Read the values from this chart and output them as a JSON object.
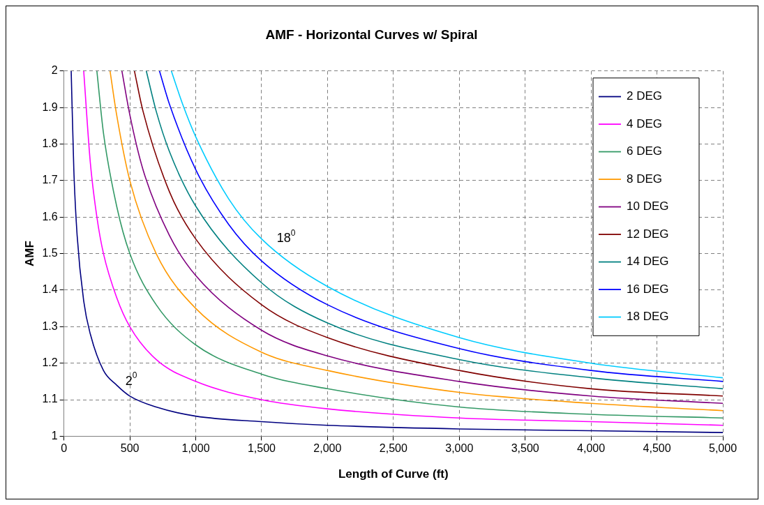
{
  "chart_data": {
    "type": "line",
    "title": "AMF - Horizontal Curves w/ Spiral",
    "xlabel": "Length of Curve (ft)",
    "ylabel": "AMF",
    "xlim": [
      0,
      5000
    ],
    "xticks": [
      0,
      500,
      {
        "value": 1000,
        "label": "1,000"
      },
      {
        "value": 1500,
        "label": "1,500"
      },
      {
        "value": 2000,
        "label": "2,000"
      },
      {
        "value": 2500,
        "label": "2,500"
      },
      {
        "value": 3000,
        "label": "3,000"
      },
      {
        "value": 3500,
        "label": "3,500"
      },
      {
        "value": 4000,
        "label": "4,000"
      },
      {
        "value": 4500,
        "label": "4,500"
      },
      {
        "value": 5000,
        "label": "5,000"
      }
    ],
    "ylim": [
      1,
      2
    ],
    "yticks": [
      1,
      1.1,
      1.2,
      1.3,
      1.4,
      1.5,
      1.6,
      1.7,
      1.8,
      1.9,
      2
    ],
    "grid": true,
    "legend": "top right",
    "marker": "none",
    "line_style": "solid",
    "annotations": [
      {
        "text": "2$^{0}$",
        "x": 450,
        "y": 1.12
      },
      {
        "text": "18$^{0}$",
        "x": 1600,
        "y": 1.51
      }
    ],
    "series": [
      {
        "name": "2 DEG",
        "color": "#000080",
        "x": [
          55,
          75,
          100,
          150,
          200,
          300,
          400,
          500,
          700,
          1000,
          1500,
          2000,
          3000,
          4000,
          5000
        ],
        "values": [
          2.0,
          1.73,
          1.55,
          1.37,
          1.28,
          1.18,
          1.14,
          1.11,
          1.08,
          1.055,
          1.04,
          1.03,
          1.02,
          1.015,
          1.01
        ]
      },
      {
        "name": "4 DEG",
        "color": "#ff00ff",
        "x": [
          150,
          200,
          250,
          300,
          400,
          500,
          700,
          1000,
          1500,
          2000,
          3000,
          4000,
          5000
        ],
        "values": [
          2.0,
          1.75,
          1.6,
          1.5,
          1.38,
          1.3,
          1.21,
          1.15,
          1.1,
          1.075,
          1.05,
          1.04,
          1.03
        ]
      },
      {
        "name": "6 DEG",
        "color": "#339966",
        "x": [
          250,
          300,
          400,
          500,
          700,
          1000,
          1500,
          2000,
          3000,
          4000,
          5000
        ],
        "values": [
          2.0,
          1.83,
          1.63,
          1.5,
          1.36,
          1.25,
          1.17,
          1.13,
          1.08,
          1.06,
          1.05
        ]
      },
      {
        "name": "8 DEG",
        "color": "#ff9900",
        "x": [
          350,
          400,
          500,
          700,
          1000,
          1500,
          2000,
          3000,
          4000,
          5000
        ],
        "values": [
          2.0,
          1.88,
          1.7,
          1.5,
          1.35,
          1.23,
          1.18,
          1.12,
          1.09,
          1.07
        ]
      },
      {
        "name": "10 DEG",
        "color": "#800080",
        "x": [
          440,
          500,
          600,
          800,
          1000,
          1500,
          2000,
          3000,
          4000,
          5000
        ],
        "values": [
          2.0,
          1.88,
          1.73,
          1.55,
          1.44,
          1.29,
          1.22,
          1.15,
          1.11,
          1.09
        ]
      },
      {
        "name": "12 DEG",
        "color": "#800000",
        "x": [
          535,
          600,
          800,
          1000,
          1500,
          2000,
          3000,
          4000,
          5000
        ],
        "values": [
          2.0,
          1.89,
          1.67,
          1.54,
          1.36,
          1.27,
          1.18,
          1.13,
          1.11
        ]
      },
      {
        "name": "14 DEG",
        "color": "#008080",
        "x": [
          625,
          700,
          800,
          1000,
          1500,
          2000,
          3000,
          4000,
          5000
        ],
        "values": [
          2.0,
          1.89,
          1.78,
          1.63,
          1.42,
          1.31,
          1.21,
          1.16,
          1.13
        ]
      },
      {
        "name": "16 DEG",
        "color": "#0000ff",
        "x": [
          725,
          800,
          1000,
          1250,
          1500,
          2000,
          3000,
          4000,
          5000
        ],
        "values": [
          2.0,
          1.91,
          1.73,
          1.58,
          1.48,
          1.36,
          1.24,
          1.18,
          1.15
        ]
      },
      {
        "name": "18 DEG",
        "color": "#00ccff",
        "x": [
          815,
          900,
          1000,
          1250,
          1500,
          2000,
          3000,
          4000,
          5000
        ],
        "values": [
          2.0,
          1.91,
          1.82,
          1.65,
          1.54,
          1.41,
          1.27,
          1.2,
          1.16
        ]
      }
    ]
  }
}
